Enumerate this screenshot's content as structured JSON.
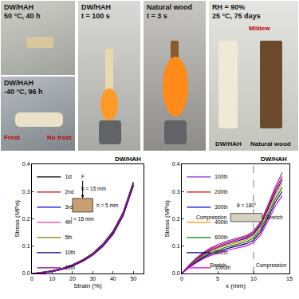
{
  "photos": {
    "panels": [
      {
        "labels": [
          "DW/HAH",
          "50 °C, 40 h"
        ]
      },
      {
        "labels": [
          "DW/HAH",
          "-40 °C, 96 h"
        ],
        "notes": [
          "Frost",
          "No frost"
        ]
      },
      {
        "labels": [
          "DW/HAH",
          "t = 100 s"
        ]
      },
      {
        "labels": [
          "Natural wood",
          "t = 3 s"
        ]
      },
      {
        "labels": [
          "RH = 90%",
          "25 °C, 75 days"
        ],
        "notes": [
          "Mildew"
        ],
        "captions": [
          "DW/HAH",
          "Natural wood"
        ]
      }
    ]
  },
  "chart_data": [
    {
      "type": "line",
      "title": "DW/HAH",
      "x_label": "Strain (%)",
      "y_label": "Stress (MPa)",
      "x": [
        0,
        5,
        10,
        15,
        20,
        25,
        30,
        35,
        40,
        45,
        50
      ],
      "series": [
        {
          "name": "1st",
          "color": "#000000",
          "values": [
            0,
            0.004,
            0.01,
            0.019,
            0.032,
            0.05,
            0.074,
            0.108,
            0.155,
            0.225,
            0.335
          ]
        },
        {
          "name": "2nd",
          "color": "#e00000",
          "values": [
            0,
            0.003,
            0.009,
            0.018,
            0.031,
            0.049,
            0.073,
            0.106,
            0.152,
            0.222,
            0.33
          ]
        },
        {
          "name": "3rd",
          "color": "#0000e0",
          "values": [
            0,
            0.003,
            0.009,
            0.018,
            0.03,
            0.048,
            0.072,
            0.105,
            0.15,
            0.22,
            0.328
          ]
        },
        {
          "name": "4th",
          "color": "#e040a0",
          "values": [
            0,
            0.003,
            0.008,
            0.017,
            0.029,
            0.047,
            0.07,
            0.103,
            0.148,
            0.218,
            0.326
          ]
        },
        {
          "name": "5th",
          "color": "#808000",
          "values": [
            0,
            0.002,
            0.008,
            0.016,
            0.028,
            0.046,
            0.069,
            0.102,
            0.146,
            0.216,
            0.324
          ]
        },
        {
          "name": "10th",
          "color": "#000080",
          "values": [
            0,
            0.002,
            0.007,
            0.016,
            0.028,
            0.045,
            0.068,
            0.1,
            0.145,
            0.214,
            0.322
          ]
        },
        {
          "name": "15th",
          "color": "#8000a0",
          "values": [
            0,
            0.002,
            0.007,
            0.015,
            0.027,
            0.044,
            0.067,
            0.099,
            0.143,
            0.212,
            0.32
          ]
        }
      ],
      "xlim": [
        0,
        55
      ],
      "xticks": [
        0,
        10,
        20,
        30,
        40,
        50
      ],
      "ylim": [
        0,
        0.4
      ],
      "yticks": [
        {
          "value": 0,
          "label": "0.0"
        },
        0.1,
        0.2,
        0.3,
        0.4
      ],
      "legend": "top left",
      "annotations": [
        "F",
        "b = 15 mm",
        "l = 15 mm",
        "h = 5 mm"
      ]
    },
    {
      "type": "line",
      "title": "DW/HAH",
      "x_label": "x (mm)",
      "y_label": "Stress (MPa)",
      "x": [
        0,
        1,
        2,
        3,
        4,
        5,
        6,
        7,
        8,
        9,
        10,
        11,
        12,
        13,
        14
      ],
      "series": [
        {
          "name": "100th",
          "color": "#8a2be2",
          "values": [
            0,
            0.03,
            0.056,
            0.077,
            0.093,
            0.106,
            0.116,
            0.124,
            0.131,
            0.139,
            0.155,
            0.19,
            0.25,
            0.315,
            0.37
          ]
        },
        {
          "name": "200th",
          "color": "#e00000",
          "values": [
            0,
            0.029,
            0.053,
            0.073,
            0.089,
            0.101,
            0.111,
            0.119,
            0.126,
            0.134,
            0.15,
            0.184,
            0.243,
            0.305,
            0.355
          ]
        },
        {
          "name": "300th",
          "color": "#0000e0",
          "values": [
            0,
            0.027,
            0.05,
            0.069,
            0.084,
            0.096,
            0.106,
            0.114,
            0.121,
            0.129,
            0.144,
            0.177,
            0.235,
            0.295,
            0.343
          ]
        },
        {
          "name": "400th",
          "color": "#ff8c00",
          "values": [
            0,
            0.026,
            0.048,
            0.066,
            0.08,
            0.092,
            0.101,
            0.109,
            0.116,
            0.123,
            0.138,
            0.17,
            0.226,
            0.285,
            0.33
          ]
        },
        {
          "name": "600th",
          "color": "#008000",
          "values": [
            0,
            0.024,
            0.045,
            0.062,
            0.075,
            0.086,
            0.095,
            0.102,
            0.109,
            0.116,
            0.13,
            0.161,
            0.215,
            0.272,
            0.315
          ]
        },
        {
          "name": "800th",
          "color": "#000080",
          "values": [
            0,
            0.023,
            0.042,
            0.058,
            0.071,
            0.081,
            0.089,
            0.096,
            0.102,
            0.109,
            0.122,
            0.152,
            0.204,
            0.26,
            0.3
          ]
        },
        {
          "name": "1000th",
          "color": "#e000e0",
          "values": [
            0,
            0.021,
            0.039,
            0.054,
            0.066,
            0.075,
            0.083,
            0.089,
            0.095,
            0.101,
            0.113,
            0.142,
            0.192,
            0.246,
            0.285
          ]
        }
      ],
      "xlim": [
        0,
        15
      ],
      "xticks": [
        0,
        5,
        10,
        15
      ],
      "ylim": [
        0,
        0.4
      ],
      "yticks": [
        {
          "value": 0,
          "label": "0.0"
        },
        0.1,
        0.2,
        0.3,
        0.4
      ],
      "legend": "top left",
      "annotations": [
        "θ = 180°",
        "Compression",
        "Stretch",
        "Stretch",
        "Compression"
      ]
    }
  ]
}
